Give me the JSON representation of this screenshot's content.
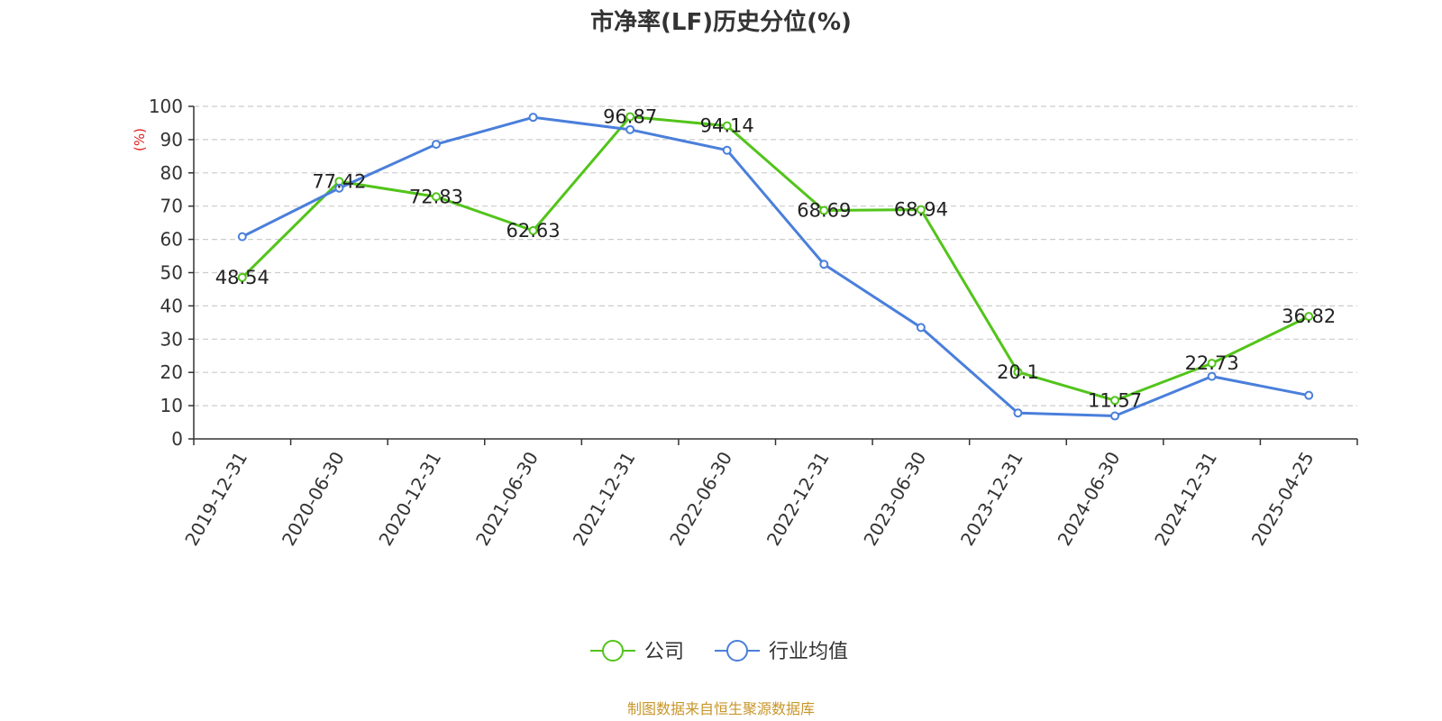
{
  "chart_data": {
    "type": "line",
    "title": "市净率(LF)历史分位(%)",
    "ylabel": "(%)",
    "ylim": [
      0,
      100
    ],
    "yticks": [
      0,
      10,
      20,
      30,
      40,
      50,
      60,
      70,
      80,
      90,
      100
    ],
    "grid": true,
    "categories": [
      "2019-12-31",
      "2020-06-30",
      "2020-12-31",
      "2021-06-30",
      "2021-12-31",
      "2022-06-30",
      "2022-12-31",
      "2023-06-30",
      "2023-12-31",
      "2024-06-30",
      "2024-12-31",
      "2025-04-25"
    ],
    "series": [
      {
        "name": "公司",
        "color": "#52c41a",
        "values": [
          48.54,
          77.42,
          72.83,
          62.63,
          96.87,
          94.14,
          68.69,
          68.94,
          20.1,
          11.57,
          22.73,
          36.82
        ],
        "labels": [
          "48.54",
          "77.42",
          "72.83",
          "62.63",
          "96.87",
          "94.14",
          "68.69",
          "68.94",
          "20.1",
          "11.57",
          "22.73",
          "36.82"
        ]
      },
      {
        "name": "行业均值",
        "color": "#4a7fdb",
        "values": [
          60.8,
          75.4,
          88.6,
          96.7,
          93.0,
          86.8,
          52.5,
          33.5,
          7.8,
          6.9,
          18.8,
          13.1
        ]
      }
    ],
    "legend_position": "bottom-center",
    "source": "制图数据来自恒生聚源数据库",
    "source_color": "#c8962a",
    "ylabel_color": "#e02020"
  }
}
